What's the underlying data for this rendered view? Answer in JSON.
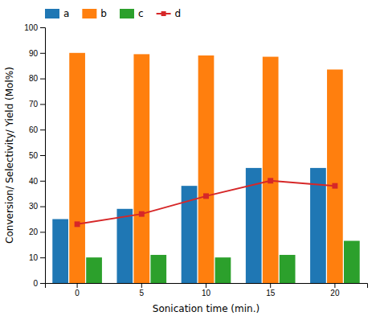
{
  "chart_data": {
    "type": "bar",
    "categories": [
      0,
      5,
      10,
      15,
      20
    ],
    "series": [
      {
        "name": "a",
        "type": "bar",
        "values": [
          25,
          29,
          38,
          45,
          45
        ]
      },
      {
        "name": "b",
        "type": "bar",
        "values": [
          90,
          89.5,
          89,
          88.5,
          83.5
        ]
      },
      {
        "name": "c",
        "type": "bar",
        "values": [
          10,
          11,
          10,
          11,
          16.5
        ]
      },
      {
        "name": "d",
        "type": "line",
        "marker": "square",
        "values": [
          23,
          27,
          34,
          40,
          38
        ]
      }
    ],
    "x_label": "Sonication time (min.)",
    "y_label": "Conversion/ Selectivity/ Yield (Mol%)",
    "ylim": [
      0,
      100
    ],
    "yticks": [
      0,
      10,
      20,
      30,
      40,
      50,
      60,
      70,
      80,
      90,
      100
    ],
    "grid": false,
    "legend": "top"
  }
}
